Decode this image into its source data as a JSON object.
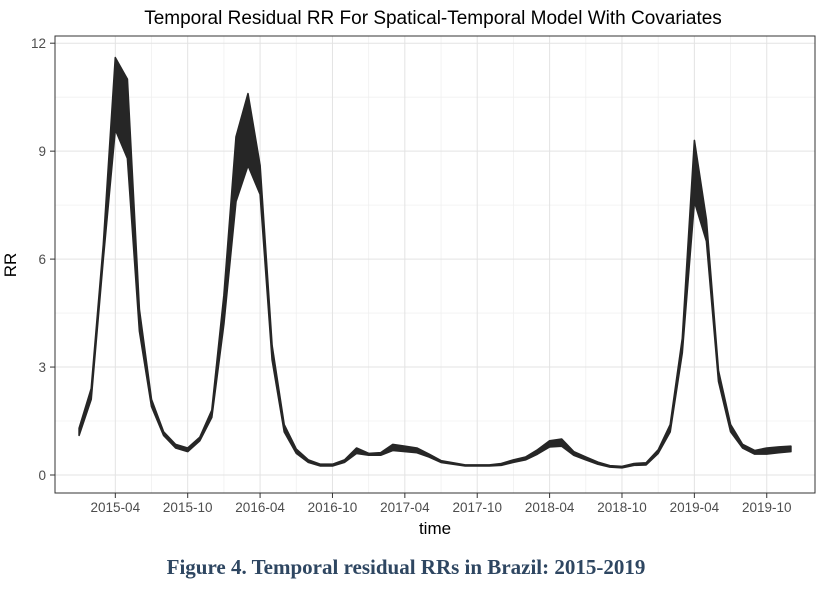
{
  "chart_data": {
    "type": "area",
    "title": "Temporal Residual RR For Spatical-Temporal Model With Covariates",
    "xlabel": "time",
    "ylabel": "RR",
    "y_ticks": [
      0,
      3,
      6,
      9,
      12
    ],
    "x_ticks": [
      "2015-04",
      "2015-10",
      "2016-04",
      "2016-10",
      "2017-04",
      "2017-10",
      "2018-04",
      "2018-10",
      "2019-04",
      "2019-10"
    ],
    "ylim": [
      -0.5,
      12.2
    ],
    "xlim": [
      "2014-11",
      "2020-02"
    ],
    "grid": true,
    "legend": "none",
    "band_color": "#262626",
    "series": [
      {
        "x": [
          "2015-01",
          "2015-02",
          "2015-03",
          "2015-04",
          "2015-05",
          "2015-06",
          "2015-07",
          "2015-08",
          "2015-09",
          "2015-10",
          "2015-11",
          "2015-12",
          "2016-01",
          "2016-02",
          "2016-03",
          "2016-04",
          "2016-05",
          "2016-06",
          "2016-07",
          "2016-08",
          "2016-09",
          "2016-10",
          "2016-11",
          "2016-12",
          "2017-01",
          "2017-02",
          "2017-03",
          "2017-04",
          "2017-05",
          "2017-06",
          "2017-07",
          "2017-08",
          "2017-09",
          "2017-10",
          "2017-11",
          "2017-12",
          "2018-01",
          "2018-02",
          "2018-03",
          "2018-04",
          "2018-05",
          "2018-06",
          "2018-07",
          "2018-08",
          "2018-09",
          "2018-10",
          "2018-11",
          "2018-12",
          "2019-01",
          "2019-02",
          "2019-03",
          "2019-04",
          "2019-05",
          "2019-06",
          "2019-07",
          "2019-08",
          "2019-09",
          "2019-10",
          "2019-11",
          "2019-12"
        ],
        "lower": [
          1.1,
          2.1,
          6.0,
          9.6,
          8.8,
          4.0,
          1.9,
          1.1,
          0.75,
          0.65,
          0.95,
          1.6,
          4.2,
          7.6,
          8.6,
          7.8,
          3.2,
          1.2,
          0.6,
          0.35,
          0.25,
          0.25,
          0.35,
          0.6,
          0.55,
          0.55,
          0.68,
          0.65,
          0.62,
          0.5,
          0.35,
          0.3,
          0.25,
          0.25,
          0.25,
          0.27,
          0.35,
          0.42,
          0.58,
          0.78,
          0.8,
          0.55,
          0.42,
          0.3,
          0.22,
          0.2,
          0.27,
          0.28,
          0.6,
          1.2,
          3.4,
          7.6,
          6.5,
          2.6,
          1.2,
          0.75,
          0.58,
          0.58,
          0.62,
          0.65
        ],
        "upper": [
          1.3,
          2.4,
          6.4,
          11.6,
          11.0,
          4.6,
          2.1,
          1.2,
          0.85,
          0.75,
          1.05,
          1.8,
          5.0,
          9.4,
          10.6,
          8.6,
          3.6,
          1.4,
          0.72,
          0.42,
          0.3,
          0.3,
          0.42,
          0.75,
          0.6,
          0.62,
          0.85,
          0.8,
          0.75,
          0.58,
          0.4,
          0.34,
          0.28,
          0.28,
          0.28,
          0.32,
          0.42,
          0.5,
          0.7,
          0.95,
          1.0,
          0.65,
          0.5,
          0.36,
          0.26,
          0.24,
          0.32,
          0.34,
          0.7,
          1.4,
          3.8,
          9.3,
          7.1,
          2.9,
          1.4,
          0.85,
          0.68,
          0.75,
          0.78,
          0.8
        ]
      }
    ]
  },
  "caption": "Figure 4. Temporal residual RRs in Brazil: 2015-2019"
}
